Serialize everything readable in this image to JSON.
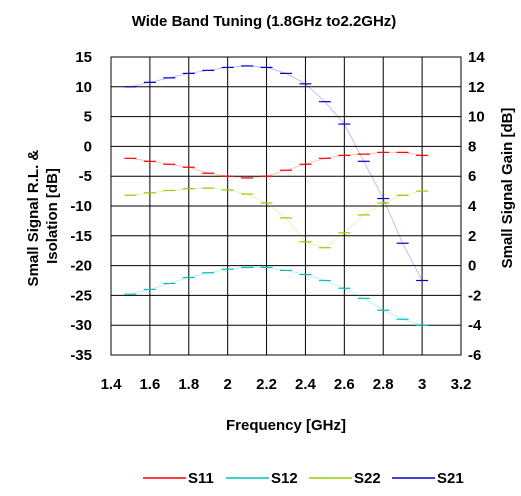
{
  "chart_data": {
    "type": "line",
    "title": "Wide Band Tuning (1.8GHz  to2.2GHz)",
    "xlabel": "Frequency [GHz]",
    "ylabel_left": [
      "Small Signal R.L. &",
      "Isolation [dB]"
    ],
    "ylabel_right": "Small Signal Gain [dB]",
    "xlim": [
      1.4,
      3.2
    ],
    "ylim_left": [
      -35,
      15
    ],
    "ylim_right": [
      -6,
      14
    ],
    "x_ticks": [
      1.4,
      1.6,
      1.8,
      2,
      2.2,
      2.4,
      2.6,
      2.8,
      3,
      3.2
    ],
    "y_ticks_left": [
      15,
      10,
      5,
      0,
      -5,
      -10,
      -15,
      -20,
      -25,
      -30,
      -35
    ],
    "y_ticks_right": [
      14,
      12,
      10,
      8,
      6,
      4,
      2,
      0,
      -2,
      -4,
      -6
    ],
    "x_tick_labels": [
      "1.4",
      "1.6",
      "1.8",
      "2",
      "2.2",
      "2.4",
      "2.6",
      "2.8",
      "3",
      "3.2"
    ],
    "y_tick_labels_left": [
      "15",
      "10",
      "5",
      "0",
      "-5",
      "-10",
      "-15",
      "-20",
      "-25",
      "-30",
      "-35"
    ],
    "y_tick_labels_right": [
      "14",
      "12",
      "10",
      "8",
      "6",
      "4",
      "2",
      "0",
      "-2",
      "-4",
      "-6"
    ],
    "grid": true,
    "legend_position": "bottom",
    "series": [
      {
        "name": "S11",
        "axis": "left",
        "color": "#ff0000",
        "x": [
          1.5,
          1.6,
          1.7,
          1.8,
          1.9,
          2.0,
          2.1,
          2.2,
          2.3,
          2.4,
          2.5,
          2.6,
          2.7,
          2.8,
          2.9,
          3.0
        ],
        "y": [
          -2.0,
          -2.5,
          -3.0,
          -3.5,
          -4.5,
          -5.0,
          -5.3,
          -5.0,
          -4.0,
          -3.0,
          -2.0,
          -1.5,
          -1.3,
          -1.0,
          -1.0,
          -1.5
        ]
      },
      {
        "name": "S12",
        "axis": "left",
        "color": "#00c0c0",
        "x": [
          1.5,
          1.6,
          1.7,
          1.8,
          1.9,
          2.0,
          2.1,
          2.2,
          2.3,
          2.4,
          2.5,
          2.6,
          2.7,
          2.8,
          2.9,
          3.0
        ],
        "y": [
          -24.8,
          -24.0,
          -23.0,
          -22.0,
          -21.2,
          -20.6,
          -20.3,
          -20.3,
          -20.8,
          -21.5,
          -22.5,
          -23.8,
          -25.5,
          -27.5,
          -29.0,
          -30.0
        ]
      },
      {
        "name": "S22",
        "axis": "left",
        "color": "#99cc00",
        "x": [
          1.5,
          1.6,
          1.7,
          1.8,
          1.9,
          2.0,
          2.1,
          2.2,
          2.3,
          2.4,
          2.5,
          2.6,
          2.7,
          2.8,
          2.9,
          3.0
        ],
        "y": [
          -8.2,
          -7.8,
          -7.4,
          -7.1,
          -7.0,
          -7.3,
          -8.0,
          -9.5,
          -12.0,
          -16.0,
          -17.0,
          -14.5,
          -11.5,
          -9.5,
          -8.2,
          -7.5
        ]
      },
      {
        "name": "S21",
        "axis": "right",
        "color": "#0000cc",
        "x": [
          1.5,
          1.6,
          1.7,
          1.8,
          1.9,
          2.0,
          2.1,
          2.2,
          2.3,
          2.4,
          2.5,
          2.6,
          2.7,
          2.8,
          2.9,
          3.0
        ],
        "y": [
          12.0,
          12.3,
          12.6,
          12.9,
          13.1,
          13.3,
          13.4,
          13.3,
          12.9,
          12.2,
          11.0,
          9.5,
          7.0,
          4.5,
          1.5,
          -1.0
        ]
      }
    ]
  }
}
